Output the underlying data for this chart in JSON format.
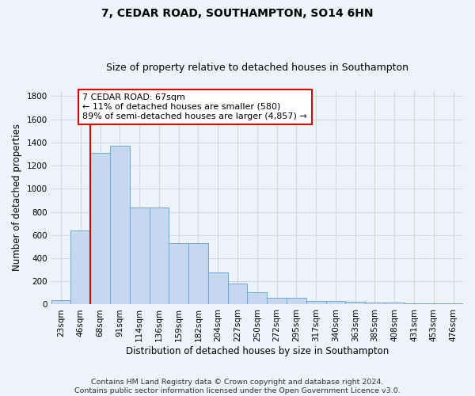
{
  "title": "7, CEDAR ROAD, SOUTHAMPTON, SO14 6HN",
  "subtitle": "Size of property relative to detached houses in Southampton",
  "xlabel": "Distribution of detached houses by size in Southampton",
  "ylabel": "Number of detached properties",
  "categories": [
    "23sqm",
    "46sqm",
    "68sqm",
    "91sqm",
    "114sqm",
    "136sqm",
    "159sqm",
    "182sqm",
    "204sqm",
    "227sqm",
    "250sqm",
    "272sqm",
    "295sqm",
    "317sqm",
    "340sqm",
    "363sqm",
    "385sqm",
    "408sqm",
    "431sqm",
    "453sqm",
    "476sqm"
  ],
  "values": [
    40,
    640,
    1310,
    1370,
    840,
    840,
    530,
    530,
    275,
    180,
    105,
    60,
    60,
    30,
    30,
    25,
    20,
    15,
    10,
    8,
    8
  ],
  "bar_color": "#c5d8f0",
  "bar_edge_color": "#6aaad4",
  "vline_x_index": 1.5,
  "annotation_line1": "7 CEDAR ROAD: 67sqm",
  "annotation_line2": "← 11% of detached houses are smaller (580)",
  "annotation_line3": "89% of semi-detached houses are larger (4,857) →",
  "ylim": [
    0,
    1850
  ],
  "yticks": [
    0,
    200,
    400,
    600,
    800,
    1000,
    1200,
    1400,
    1600,
    1800
  ],
  "bg_color": "#eef2fa",
  "plot_bg_color": "#eef2fa",
  "grid_color": "#d0d8e8",
  "vline_color": "#dd0000",
  "box_edge_color": "#dd0000",
  "title_fontsize": 10,
  "subtitle_fontsize": 9,
  "xlabel_fontsize": 8.5,
  "ylabel_fontsize": 8.5,
  "tick_fontsize": 7.5,
  "annotation_fontsize": 8,
  "footer_fontsize": 6.8,
  "footer_line1": "Contains HM Land Registry data © Crown copyright and database right 2024.",
  "footer_line2": "Contains public sector information licensed under the Open Government Licence v3.0."
}
